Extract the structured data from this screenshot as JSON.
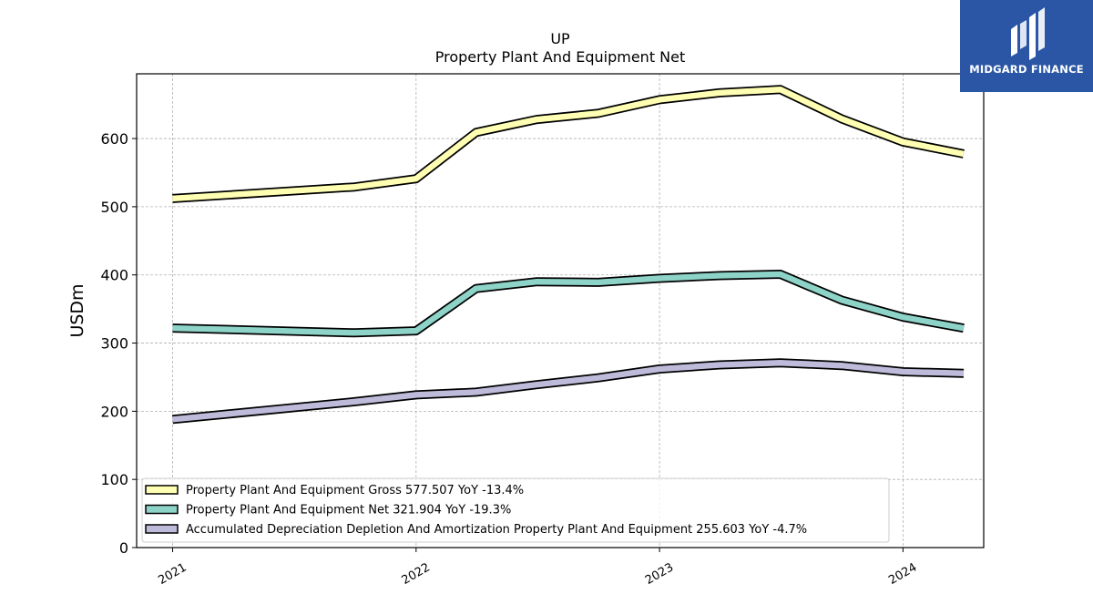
{
  "chart_data": {
    "type": "line",
    "title": "UP",
    "subtitle": "Property Plant And Equipment Net",
    "ylabel": "USDm",
    "xlabel": "",
    "ylim": [
      0,
      695
    ],
    "xlim": [
      "2020-11-08",
      "2024-05-01"
    ],
    "yticks": [
      0,
      100,
      200,
      300,
      400,
      500,
      600
    ],
    "xticks": [
      {
        "date": "2021-01-01",
        "label": "2021"
      },
      {
        "date": "2022-01-01",
        "label": "2022"
      },
      {
        "date": "2023-01-01",
        "label": "2023"
      },
      {
        "date": "2024-01-01",
        "label": "2024"
      }
    ],
    "grid": true,
    "legend_position": "lower-left",
    "x": [
      "2021-01-01",
      "2021-10-01",
      "2022-01-01",
      "2022-04-01",
      "2022-07-01",
      "2022-10-01",
      "2023-01-01",
      "2023-04-01",
      "2023-07-01",
      "2023-10-01",
      "2024-01-01",
      "2024-04-01"
    ],
    "series": [
      {
        "name": "Property Plant And Equipment Gross",
        "legend": "Property Plant And Equipment Gross  577.507 YoY -13.4%",
        "color": "#ffffb3",
        "values": [
          512,
          529,
          541,
          609,
          628,
          637,
          657,
          667,
          672,
          629,
          595,
          577.507
        ]
      },
      {
        "name": "Property Plant And Equipment Net",
        "legend": "Property Plant And Equipment Net  321.904 YoY -19.3%",
        "color": "#8dd3c7",
        "values": [
          322,
          315,
          318,
          380,
          390,
          389,
          395,
          399,
          401,
          363,
          338,
          321.904
        ]
      },
      {
        "name": "Accumulated Depreciation Depletion And Amortization Property Plant And Equipment",
        "legend": "Accumulated Depreciation Depletion And Amortization Property Plant And Equipment  255.603 YoY -4.7%",
        "color": "#bebada",
        "values": [
          188,
          214,
          224,
          228,
          239,
          249,
          262,
          268,
          271,
          267,
          258,
          255.603
        ]
      }
    ]
  },
  "logo": {
    "text": "MIDGARD FINANCE",
    "color": "#2a56a5"
  }
}
